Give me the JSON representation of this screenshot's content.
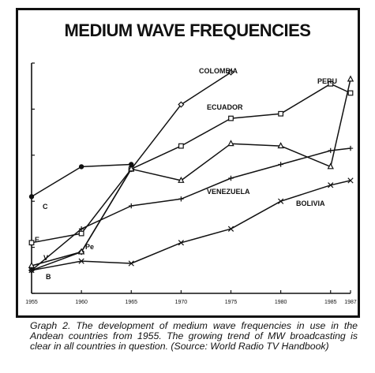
{
  "chart_data": {
    "type": "line",
    "title": "MEDIUM WAVE FREQUENCIES",
    "xlabel": "",
    "ylabel": "",
    "x": [
      1955,
      1960,
      1965,
      1970,
      1975,
      1980,
      1985,
      1987
    ],
    "ylim": [
      0,
      100
    ],
    "grid": false,
    "legend": "none",
    "series": [
      {
        "key": "colombia",
        "name": "COLOMBIA",
        "marker": "diamond",
        "points": [
          [
            1955,
            10
          ],
          [
            1960,
            18
          ],
          [
            1965,
            54
          ],
          [
            1970,
            82
          ],
          [
            1975,
            96
          ]
        ]
      },
      {
        "key": "ecuador",
        "name": "ECUADOR",
        "marker": "square",
        "points": [
          [
            1955,
            22
          ],
          [
            1960,
            26
          ],
          [
            1965,
            54
          ],
          [
            1970,
            64
          ],
          [
            1975,
            76
          ],
          [
            1980,
            78
          ],
          [
            1985,
            91
          ],
          [
            1987,
            87
          ]
        ]
      },
      {
        "key": "peru",
        "name": "PERU",
        "marker": "triangle",
        "points": [
          [
            1955,
            12
          ],
          [
            1960,
            18
          ],
          [
            1965,
            54
          ],
          [
            1970,
            49
          ],
          [
            1975,
            65
          ],
          [
            1980,
            64
          ],
          [
            1985,
            55
          ],
          [
            1987,
            93
          ]
        ]
      },
      {
        "key": "c",
        "name": "C",
        "marker": "circle",
        "points": [
          [
            1955,
            42
          ],
          [
            1960,
            55
          ],
          [
            1965,
            56
          ]
        ]
      },
      {
        "key": "venezuela",
        "name": "VENEZUELA",
        "marker": "plus",
        "points": [
          [
            1955,
            10
          ],
          [
            1960,
            28
          ],
          [
            1965,
            38
          ],
          [
            1970,
            41
          ],
          [
            1975,
            50
          ],
          [
            1980,
            56
          ],
          [
            1985,
            62
          ],
          [
            1987,
            63
          ]
        ]
      },
      {
        "key": "bolivia",
        "name": "BOLIVIA",
        "marker": "cross",
        "points": [
          [
            1955,
            10
          ],
          [
            1960,
            14
          ],
          [
            1965,
            13
          ],
          [
            1970,
            22
          ],
          [
            1975,
            28
          ],
          [
            1980,
            40
          ],
          [
            1985,
            47
          ],
          [
            1987,
            49
          ]
        ]
      }
    ],
    "annotations": [
      {
        "key": "ann_colombia",
        "text": "COLOMBIA"
      },
      {
        "key": "ann_peru",
        "text": "PERU"
      },
      {
        "key": "ann_ecuador",
        "text": "ECUADOR"
      },
      {
        "key": "ann_venezuela",
        "text": "VENEZUELA"
      },
      {
        "key": "ann_bolivia",
        "text": "BOLIVIA"
      },
      {
        "key": "ann_c",
        "text": "C"
      },
      {
        "key": "ann_e",
        "text": "E"
      },
      {
        "key": "ann_pe",
        "text": "Pe"
      },
      {
        "key": "ann_v",
        "text": "V"
      },
      {
        "key": "ann_b",
        "text": "B"
      }
    ]
  },
  "caption": "Graph 2. The development of medium wave frequencies in use in the Andean countries from 1955. The growing trend of MW broadcasting is clear in all countries in question. (Source: World Radio TV Handbook)"
}
